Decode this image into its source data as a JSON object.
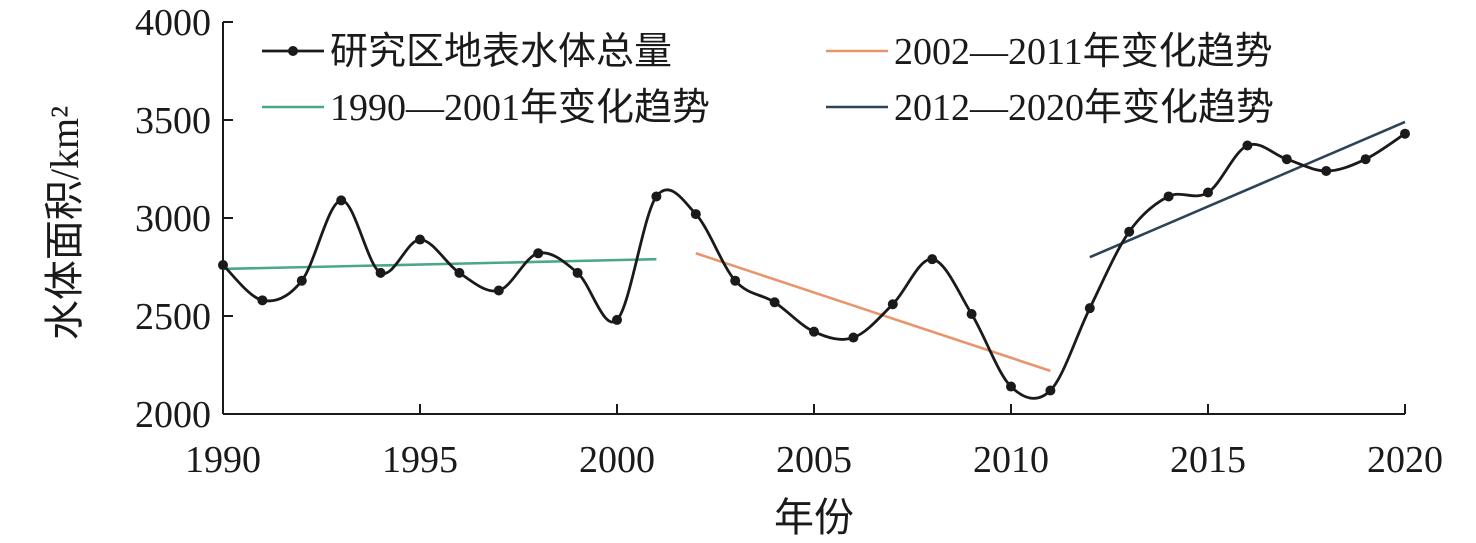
{
  "chart_data": {
    "type": "line",
    "xlabel": "年份",
    "ylabel": "水体面积/km²",
    "xlim": [
      1990,
      2020
    ],
    "ylim": [
      2000,
      4000
    ],
    "x_ticks": [
      1990,
      1995,
      2000,
      2005,
      2010,
      2015,
      2020
    ],
    "y_ticks": [
      2000,
      2500,
      3000,
      3500,
      4000
    ],
    "grid": false,
    "legend_position": "top",
    "series": [
      {
        "name": "研究区地表水体总量",
        "color": "#1a1a1a",
        "marker": "circle",
        "style": "smooth-line-with-markers",
        "x": [
          1990,
          1991,
          1992,
          1993,
          1994,
          1995,
          1996,
          1997,
          1998,
          1999,
          2000,
          2001,
          2002,
          2003,
          2004,
          2005,
          2006,
          2007,
          2008,
          2009,
          2010,
          2011,
          2012,
          2013,
          2014,
          2015,
          2016,
          2017,
          2018,
          2019,
          2020
        ],
        "values": [
          2760,
          2580,
          2680,
          3090,
          2720,
          2890,
          2720,
          2630,
          2820,
          2720,
          2480,
          3110,
          3020,
          2680,
          2570,
          2420,
          2390,
          2560,
          2790,
          2510,
          2140,
          2120,
          2540,
          2930,
          3110,
          3130,
          3370,
          3300,
          3240,
          3300,
          3430
        ]
      },
      {
        "name": "2002—2011年变化趋势",
        "color": "#e8956b",
        "style": "trend",
        "x": [
          2002,
          2011
        ],
        "values": [
          2820,
          2220
        ]
      },
      {
        "name": "1990—2001年变化趋势",
        "color": "#4aa88a",
        "style": "trend",
        "x": [
          1990,
          2001
        ],
        "values": [
          2740,
          2790
        ]
      },
      {
        "name": "2012—2020年变化趋势",
        "color": "#2e4356",
        "style": "trend",
        "x": [
          2012,
          2020
        ],
        "values": [
          2800,
          3490
        ]
      }
    ]
  }
}
